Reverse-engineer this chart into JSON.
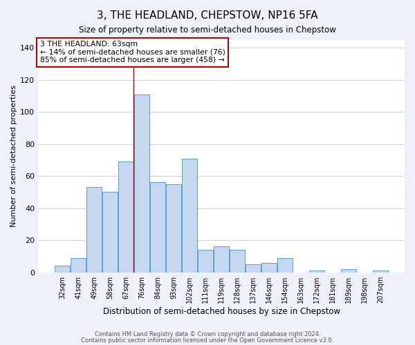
{
  "title": "3, THE HEADLAND, CHEPSTOW, NP16 5FA",
  "subtitle": "Size of property relative to semi-detached houses in Chepstow",
  "xlabel": "Distribution of semi-detached houses by size in Chepstow",
  "ylabel": "Number of semi-detached properties",
  "bin_labels": [
    "32sqm",
    "41sqm",
    "49sqm",
    "58sqm",
    "67sqm",
    "76sqm",
    "84sqm",
    "93sqm",
    "102sqm",
    "111sqm",
    "119sqm",
    "128sqm",
    "137sqm",
    "146sqm",
    "154sqm",
    "163sqm",
    "172sqm",
    "181sqm",
    "189sqm",
    "198sqm",
    "207sqm"
  ],
  "bar_values": [
    4,
    9,
    53,
    50,
    69,
    111,
    56,
    55,
    71,
    14,
    16,
    14,
    5,
    6,
    9,
    0,
    1,
    0,
    2,
    0,
    1
  ],
  "bar_color": "#c5d8f0",
  "bar_edge_color": "#5a9fd4",
  "annotation_box_text": "3 THE HEADLAND: 63sqm\n← 14% of semi-detached houses are smaller (76)\n85% of semi-detached houses are larger (458) →",
  "annotation_box_color": "#ffffff",
  "annotation_box_edge_color": "#aa0000",
  "ylim": [
    0,
    145
  ],
  "yticks": [
    0,
    20,
    40,
    60,
    80,
    100,
    120,
    140
  ],
  "divider_bar_index": 4,
  "footer_line1": "Contains HM Land Registry data © Crown copyright and database right 2024.",
  "footer_line2": "Contains public sector information licensed under the Open Government Licence v3.0.",
  "background_color": "#eef2f8",
  "plot_background_color": "#ffffff",
  "grid_color": "#c8d4e8"
}
